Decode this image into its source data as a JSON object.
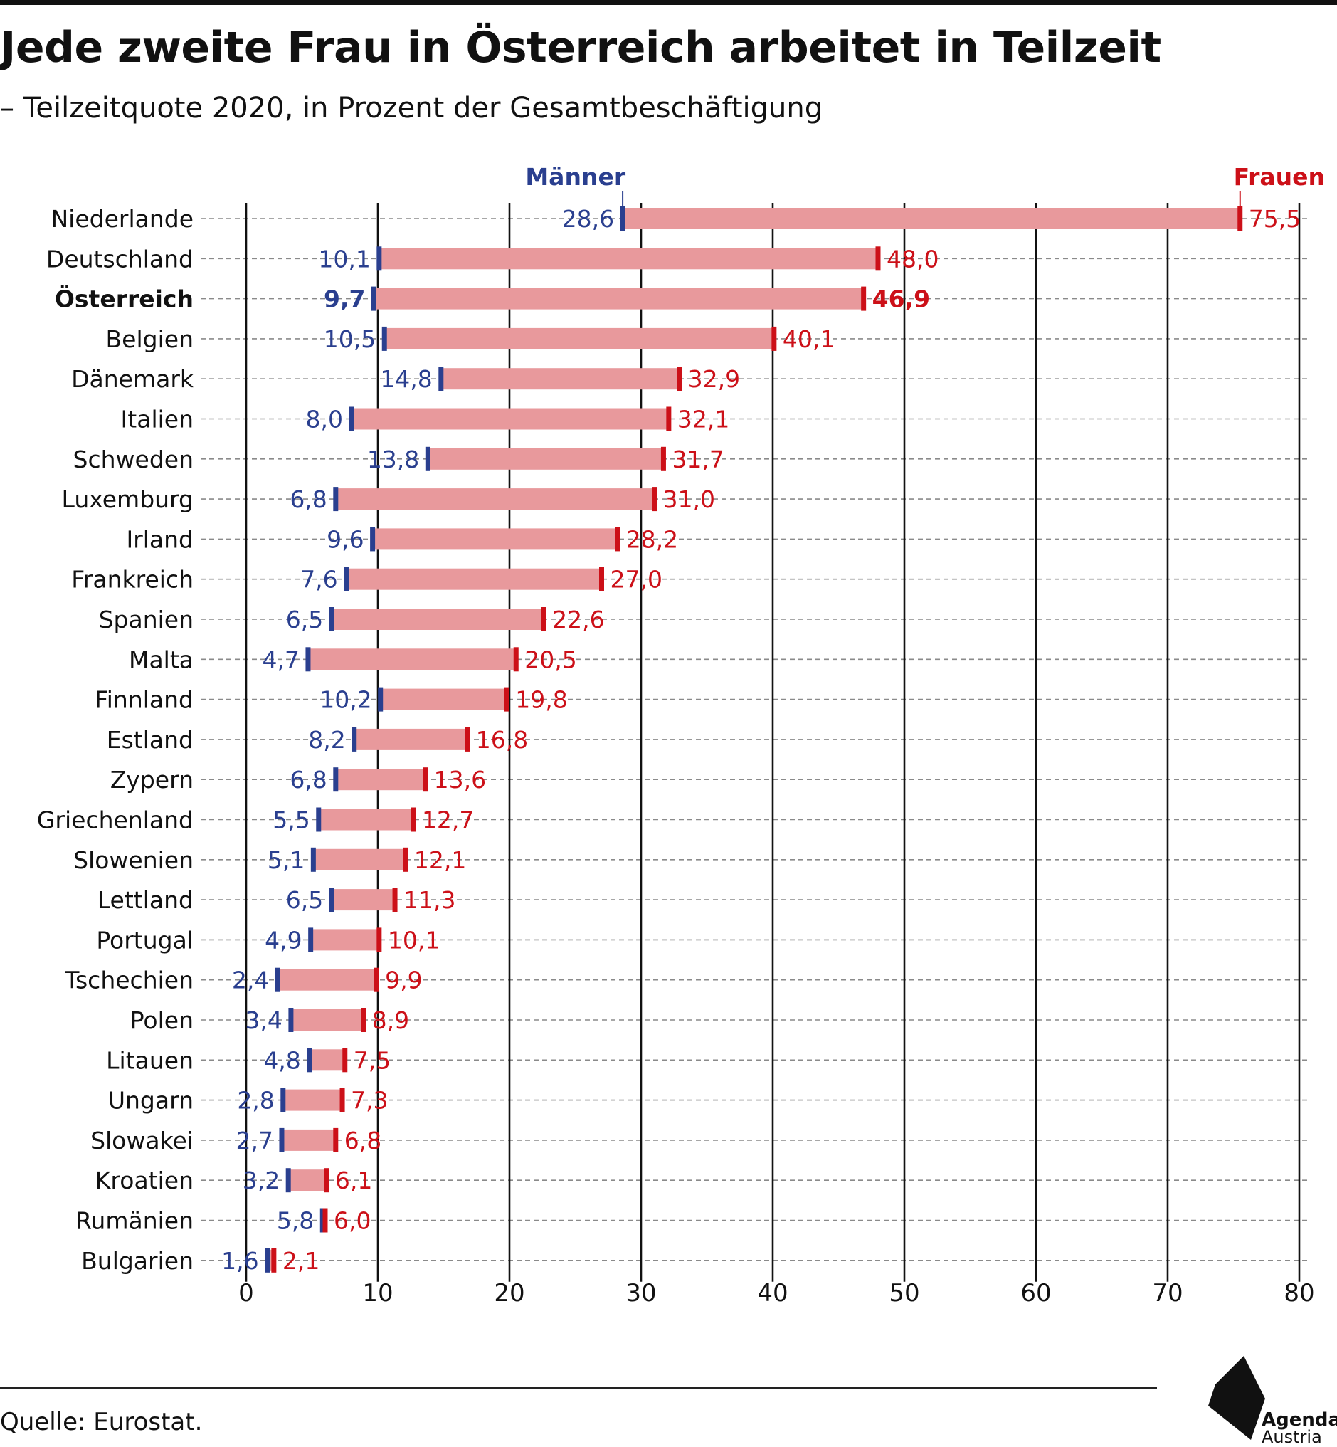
{
  "title": "Jede zweite Frau in Österreich arbeitet in Teilzeit",
  "subtitle": "– Teilzeitquote 2020, in Prozent der Gesamtbeschäftigung",
  "source": "Quelle: Eurostat.",
  "logo": {
    "line1": "Agenda",
    "line2": "Austria"
  },
  "colors": {
    "men": "#2a3f8f",
    "women": "#cc1018",
    "bar": "#e8999c",
    "text": "#111111"
  },
  "chart_data": {
    "type": "dumbbell",
    "series": [
      {
        "name": "Männer",
        "key": "men"
      },
      {
        "name": "Frauen",
        "key": "women"
      }
    ],
    "highlight": "Österreich",
    "xlim": [
      0,
      80
    ],
    "xticks": [
      0,
      10,
      20,
      30,
      40,
      50,
      60,
      70,
      80
    ],
    "grid": true,
    "rows": [
      {
        "country": "Niederlande",
        "men": 28.6,
        "women": 75.5,
        "men_label": "28,6",
        "women_label": "75,5"
      },
      {
        "country": "Deutschland",
        "men": 10.1,
        "women": 48.0,
        "men_label": "10,1",
        "women_label": "48,0"
      },
      {
        "country": "Österreich",
        "men": 9.7,
        "women": 46.9,
        "men_label": "9,7",
        "women_label": "46,9"
      },
      {
        "country": "Belgien",
        "men": 10.5,
        "women": 40.1,
        "men_label": "10,5",
        "women_label": "40,1"
      },
      {
        "country": "Dänemark",
        "men": 14.8,
        "women": 32.9,
        "men_label": "14,8",
        "women_label": "32,9"
      },
      {
        "country": "Italien",
        "men": 8.0,
        "women": 32.1,
        "men_label": "8,0",
        "women_label": "32,1"
      },
      {
        "country": "Schweden",
        "men": 13.8,
        "women": 31.7,
        "men_label": "13,8",
        "women_label": "31,7"
      },
      {
        "country": "Luxemburg",
        "men": 6.8,
        "women": 31.0,
        "men_label": "6,8",
        "women_label": "31,0"
      },
      {
        "country": "Irland",
        "men": 9.6,
        "women": 28.2,
        "men_label": "9,6",
        "women_label": "28,2"
      },
      {
        "country": "Frankreich",
        "men": 7.6,
        "women": 27.0,
        "men_label": "7,6",
        "women_label": "27,0"
      },
      {
        "country": "Spanien",
        "men": 6.5,
        "women": 22.6,
        "men_label": "6,5",
        "women_label": "22,6"
      },
      {
        "country": "Malta",
        "men": 4.7,
        "women": 20.5,
        "men_label": "4,7",
        "women_label": "20,5"
      },
      {
        "country": "Finnland",
        "men": 10.2,
        "women": 19.8,
        "men_label": "10,2",
        "women_label": "19,8"
      },
      {
        "country": "Estland",
        "men": 8.2,
        "women": 16.8,
        "men_label": "8,2",
        "women_label": "16,8"
      },
      {
        "country": "Zypern",
        "men": 6.8,
        "women": 13.6,
        "men_label": "6,8",
        "women_label": "13,6"
      },
      {
        "country": "Griechenland",
        "men": 5.5,
        "women": 12.7,
        "men_label": "5,5",
        "women_label": "12,7"
      },
      {
        "country": "Slowenien",
        "men": 5.1,
        "women": 12.1,
        "men_label": "5,1",
        "women_label": "12,1"
      },
      {
        "country": "Lettland",
        "men": 6.5,
        "women": 11.3,
        "men_label": "6,5",
        "women_label": "11,3"
      },
      {
        "country": "Portugal",
        "men": 4.9,
        "women": 10.1,
        "men_label": "4,9",
        "women_label": "10,1"
      },
      {
        "country": "Tschechien",
        "men": 2.4,
        "women": 9.9,
        "men_label": "2,4",
        "women_label": "9,9"
      },
      {
        "country": "Polen",
        "men": 3.4,
        "women": 8.9,
        "men_label": "3,4",
        "women_label": "8,9"
      },
      {
        "country": "Litauen",
        "men": 4.8,
        "women": 7.5,
        "men_label": "4,8",
        "women_label": "7,5"
      },
      {
        "country": "Ungarn",
        "men": 2.8,
        "women": 7.3,
        "men_label": "2,8",
        "women_label": "7,3"
      },
      {
        "country": "Slowakei",
        "men": 2.7,
        "women": 6.8,
        "men_label": "2,7",
        "women_label": "6,8"
      },
      {
        "country": "Kroatien",
        "men": 3.2,
        "women": 6.1,
        "men_label": "3,2",
        "women_label": "6,1"
      },
      {
        "country": "Rumänien",
        "men": 5.8,
        "women": 6.0,
        "men_label": "5,8",
        "women_label": "6,0"
      },
      {
        "country": "Bulgarien",
        "men": 1.6,
        "women": 2.1,
        "men_label": "1,6",
        "women_label": "2,1"
      }
    ]
  }
}
